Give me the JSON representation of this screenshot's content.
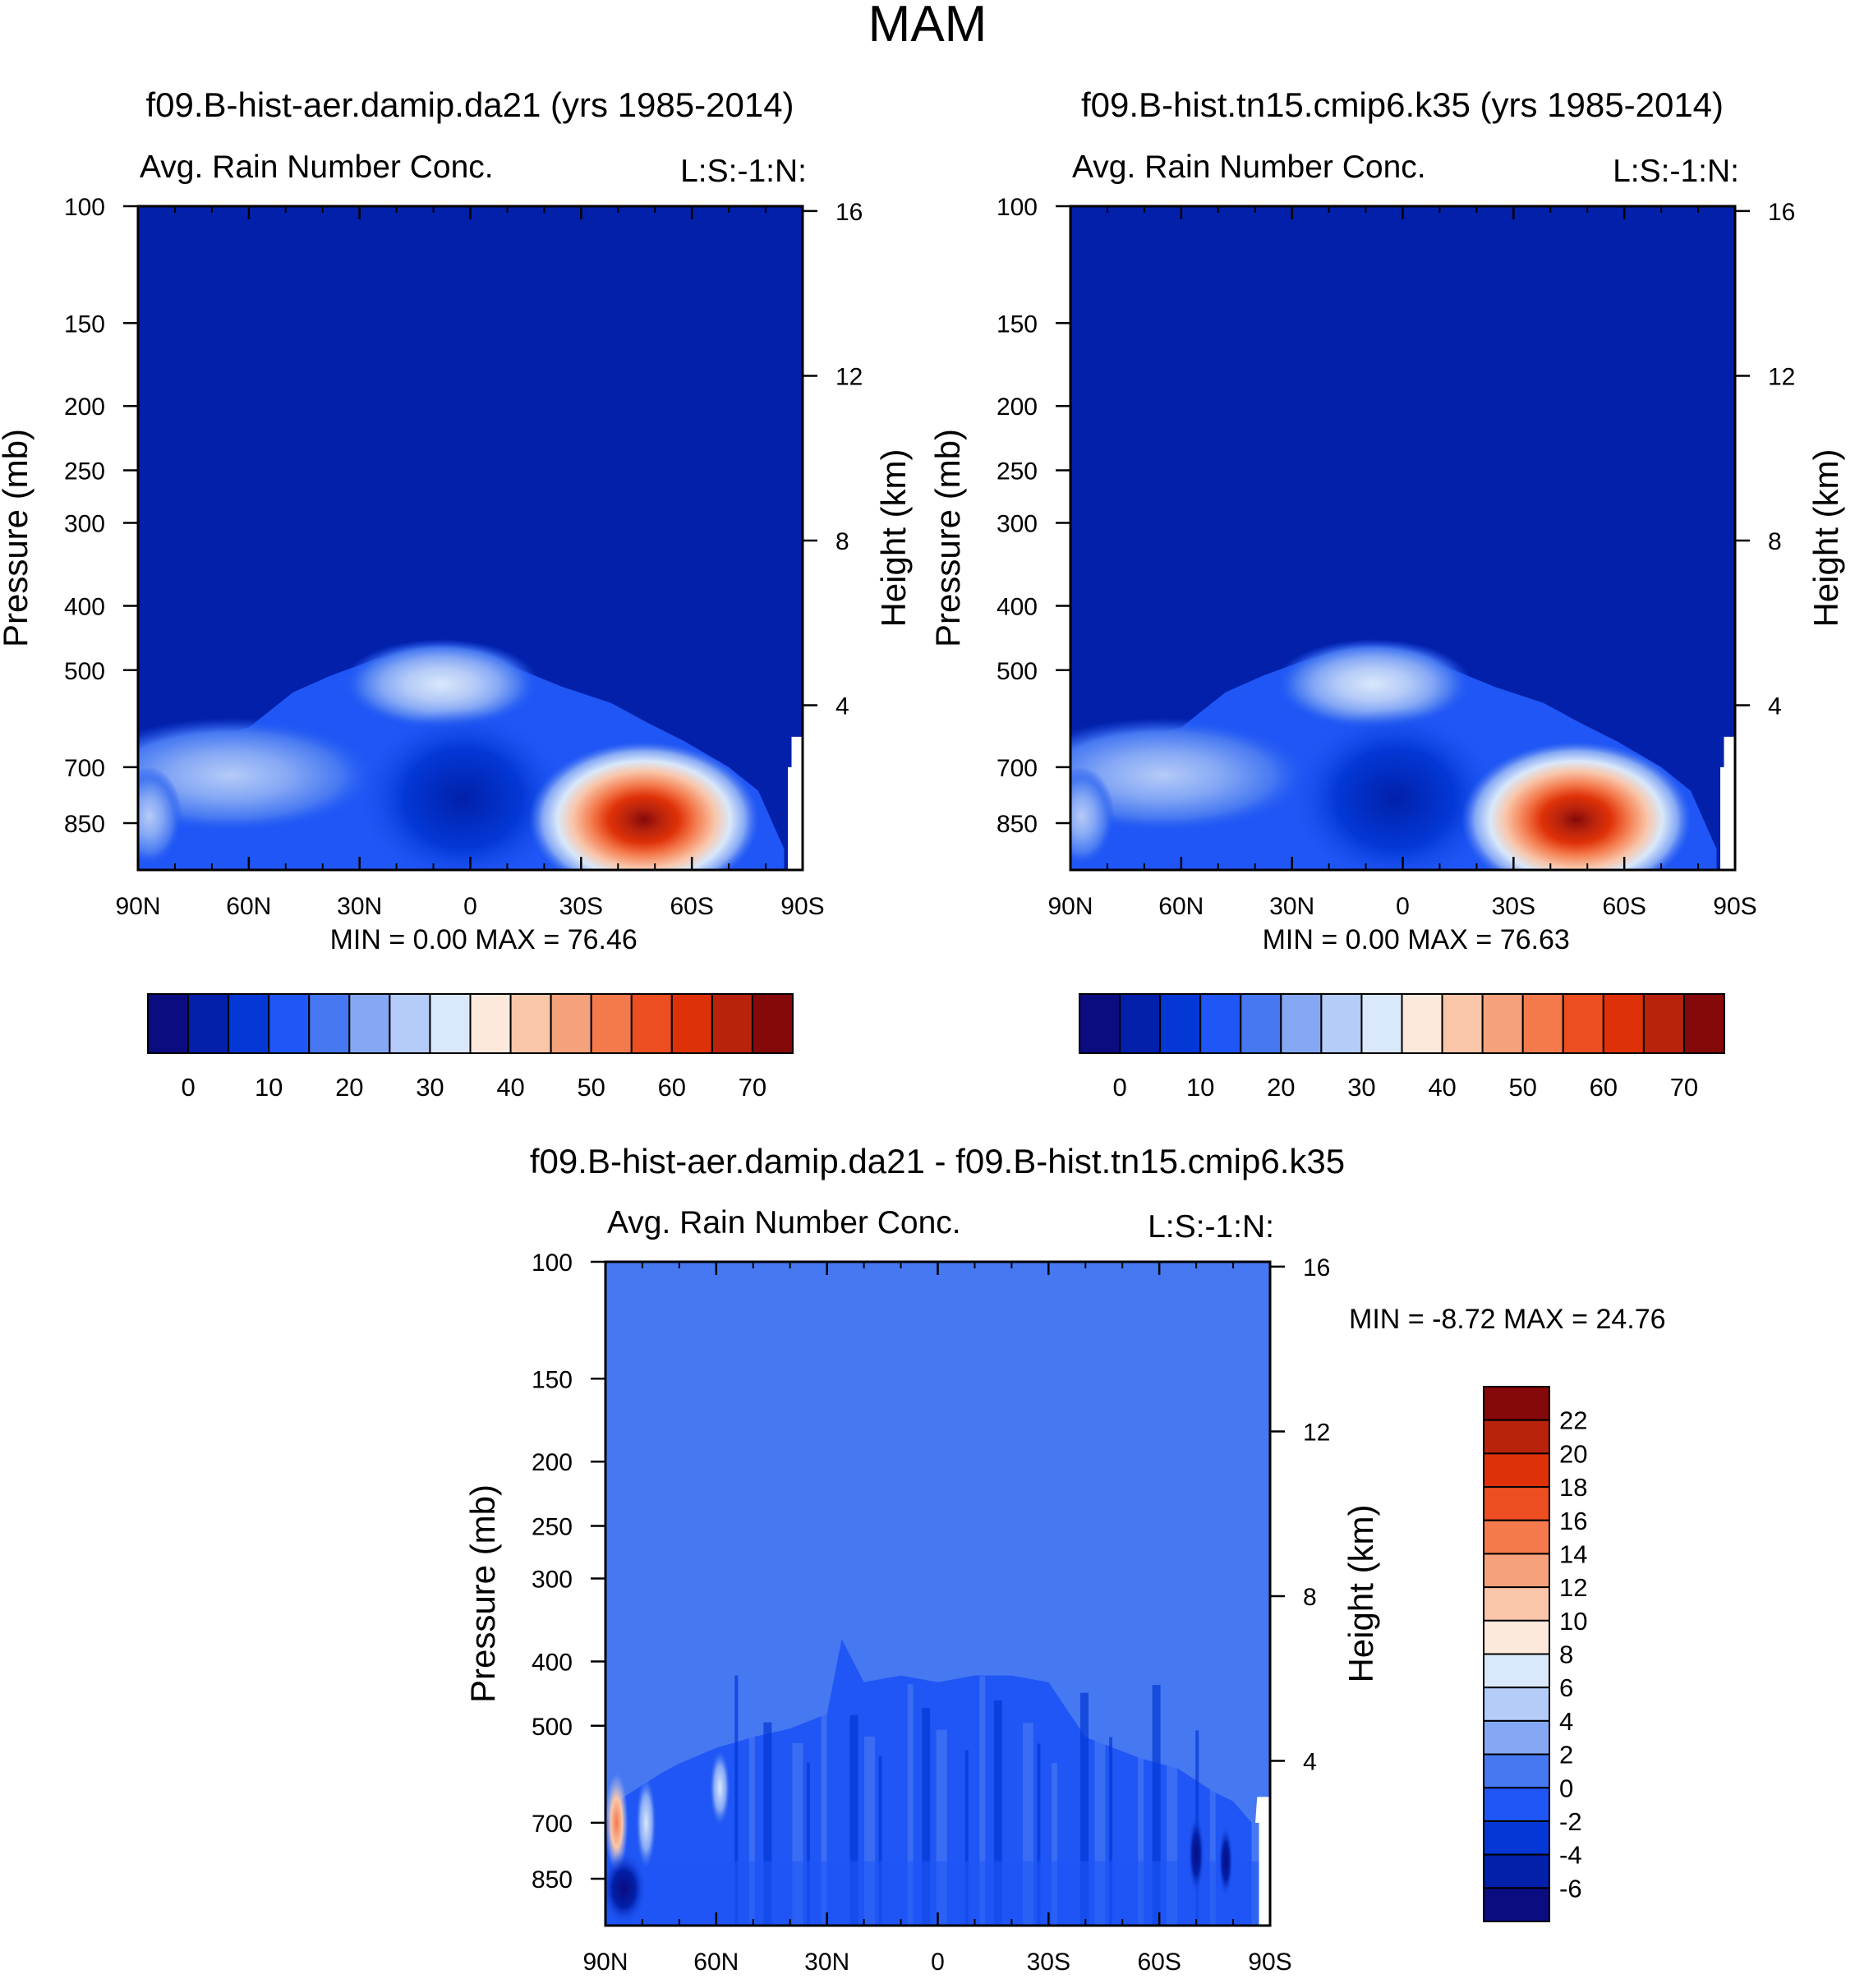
{
  "figure_title": "MAM",
  "panels": [
    {
      "title": "f09.B-hist-aer.damip.da21 (yrs 1985-2014)",
      "left_label": "Avg. Rain Number Conc.",
      "right_label": "L:S:-1:N:",
      "y_label": "Pressure (mb)",
      "y2_label": "Height (km)",
      "stats": "MIN =    0.00  MAX =  76.46",
      "variant": 1
    },
    {
      "title": "f09.B-hist.tn15.cmip6.k35 (yrs 1985-2014)",
      "left_label": "Avg. Rain Number Conc.",
      "right_label": "L:S:-1:N:",
      "y_label": "Pressure (mb)",
      "y2_label": "Height (km)",
      "stats": "MIN =    0.00  MAX =  76.63",
      "variant": 2
    },
    {
      "title": "f09.B-hist-aer.damip.da21 - f09.B-hist.tn15.cmip6.k35",
      "left_label": "Avg. Rain Number Conc.",
      "right_label": "L:S:-1:N:",
      "y_label": "Pressure (mb)",
      "y2_label": "Height (km)",
      "stats": "MIN =  -8.72  MAX =  24.76",
      "variant": 0
    }
  ],
  "chart_data": [
    {
      "type": "heatmap",
      "title": "f09.B-hist-aer.damip.da21 (yrs 1985-2014)",
      "xlabel": "",
      "ylabel": "Pressure (mb)",
      "y2label": "Height (km)",
      "x_ticks": [
        "90N",
        "60N",
        "30N",
        "0",
        "30S",
        "60S",
        "90S"
      ],
      "x_tick_values": [
        90,
        60,
        30,
        0,
        -30,
        -60,
        -90
      ],
      "y_ticks": [
        100,
        150,
        200,
        250,
        300,
        400,
        500,
        700,
        850
      ],
      "y2_ticks": [
        16,
        12,
        8,
        4
      ],
      "ylim": [
        100,
        1000
      ],
      "min": 0.0,
      "max": 76.46,
      "colorbar_levels": [
        0,
        10,
        20,
        30,
        40,
        50,
        60,
        70
      ],
      "features": [
        {
          "description": "rain number maximum over southern mid-latitudes near surface",
          "lat": -47,
          "pressure": 850,
          "value": 76.46
        },
        {
          "description": "secondary maximum aloft north of equator",
          "lat": 0,
          "pressure": 520,
          "value": 30
        },
        {
          "description": "minimum over tropics near surface",
          "lat": 0,
          "pressure": 800,
          "value": 0
        }
      ]
    },
    {
      "type": "heatmap",
      "title": "f09.B-hist.tn15.cmip6.k35 (yrs 1985-2014)",
      "xlabel": "",
      "ylabel": "Pressure (mb)",
      "y2label": "Height (km)",
      "x_ticks": [
        "90N",
        "60N",
        "30N",
        "0",
        "30S",
        "60S",
        "90S"
      ],
      "x_tick_values": [
        90,
        60,
        30,
        0,
        -30,
        -60,
        -90
      ],
      "y_ticks": [
        100,
        150,
        200,
        250,
        300,
        400,
        500,
        700,
        850
      ],
      "y2_ticks": [
        16,
        12,
        8,
        4
      ],
      "ylim": [
        100,
        1000
      ],
      "min": 0.0,
      "max": 76.63,
      "colorbar_levels": [
        0,
        10,
        20,
        30,
        40,
        50,
        60,
        70
      ],
      "features": [
        {
          "description": "rain number maximum over southern mid-latitudes near surface",
          "lat": -47,
          "pressure": 850,
          "value": 76.63
        },
        {
          "description": "secondary maximum aloft north of equator",
          "lat": 0,
          "pressure": 520,
          "value": 30
        },
        {
          "description": "minimum over tropics near surface",
          "lat": 0,
          "pressure": 800,
          "value": 0
        }
      ]
    },
    {
      "type": "heatmap",
      "title": "f09.B-hist-aer.damip.da21 - f09.B-hist.tn15.cmip6.k35",
      "xlabel": "",
      "ylabel": "Pressure (mb)",
      "y2label": "Height (km)",
      "x_ticks": [
        "90N",
        "60N",
        "30N",
        "0",
        "30S",
        "60S",
        "90S"
      ],
      "x_tick_values": [
        90,
        60,
        30,
        0,
        -30,
        -60,
        -90
      ],
      "y_ticks": [
        100,
        150,
        200,
        250,
        300,
        400,
        500,
        700,
        850
      ],
      "y2_ticks": [
        16,
        12,
        8,
        4
      ],
      "ylim": [
        100,
        1000
      ],
      "min": -8.72,
      "max": 24.76,
      "colorbar_levels": [
        22,
        20,
        18,
        16,
        14,
        12,
        10,
        8,
        6,
        4,
        2,
        0,
        -2,
        -4,
        -6
      ],
      "features": [
        {
          "description": "positive difference near north pole lower troposphere",
          "lat": 87,
          "pressure": 700,
          "value": 24.76
        },
        {
          "description": "negative difference near north pole surface",
          "lat": 85,
          "pressure": 850,
          "value": -8.72
        }
      ]
    }
  ],
  "colors": {
    "background": "#ffffff",
    "seq_colorbar": [
      "#0a0c80",
      "#0220aa",
      "#0338d6",
      "#1f56f5",
      "#4678f2",
      "#85a8f5",
      "#b5cbf8",
      "#d9e8fa",
      "#fde8dc",
      "#f9c6aa",
      "#f5a17c",
      "#f47a4c",
      "#ec4e21",
      "#df3108",
      "#b8230c",
      "#85090a"
    ],
    "diff_colorbar": [
      "#85090a",
      "#b8230c",
      "#df3108",
      "#ec4e21",
      "#f47a4c",
      "#f5a17c",
      "#f9c6aa",
      "#fde8dc",
      "#d9e8fa",
      "#b5cbf8",
      "#85a8f5",
      "#4678f2",
      "#1f56f5",
      "#0338d6",
      "#0220aa",
      "#0a0c80"
    ]
  }
}
